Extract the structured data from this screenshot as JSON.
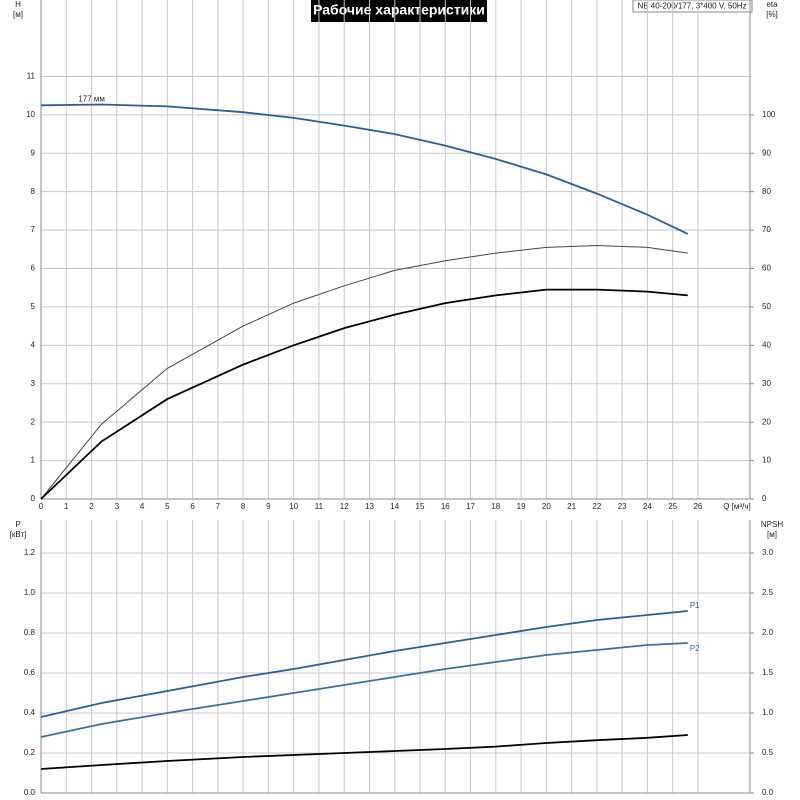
{
  "chart_data": [
    {
      "type": "line",
      "title": "Рабочие характеристики",
      "subtitle": "NB 40-200/177, 3*400 V, 50Hz",
      "x_label": "Q [м³/ч]",
      "y_label": "H",
      "y_unit": "[м]",
      "y2_label": "eta",
      "y2_unit": "[%]",
      "x": [
        0,
        2.4,
        5,
        8,
        10,
        12,
        14,
        16,
        18,
        20,
        22,
        24,
        25.6
      ],
      "series": [
        {
          "name": "177 мм",
          "color": "#2a5f95",
          "values": [
            10.25,
            10.27,
            10.22,
            10.07,
            9.92,
            9.72,
            9.5,
            9.2,
            8.85,
            8.45,
            7.95,
            7.4,
            6.9
          ]
        },
        {
          "color": "#444444",
          "axis": "y2",
          "values": [
            0,
            19.5,
            34,
            45,
            51,
            55.5,
            59.5,
            62,
            64,
            65.5,
            66,
            65.5,
            64
          ]
        },
        {
          "color": "#000000",
          "axis": "y2",
          "values": [
            0,
            15,
            26,
            35,
            40,
            44.5,
            48,
            51,
            53,
            54.5,
            54.5,
            54,
            53
          ]
        }
      ],
      "xlim": [
        0,
        28.06
      ],
      "xticks": [
        0,
        1,
        2,
        3,
        4,
        5,
        6,
        7,
        8,
        9,
        10,
        11,
        12,
        13,
        14,
        15,
        16,
        17,
        18,
        19,
        20,
        21,
        22,
        23,
        24,
        25,
        26
      ],
      "ylim": [
        0,
        12.99
      ],
      "yticks": [
        0,
        1,
        2,
        3,
        4,
        5,
        6,
        7,
        8,
        9,
        10,
        11
      ],
      "y2lim": [
        0,
        129.9
      ],
      "y2ticks": [
        0,
        10,
        20,
        30,
        40,
        50,
        60,
        70,
        80,
        90,
        100
      ],
      "grid": true
    },
    {
      "type": "line",
      "y_label": "P",
      "y_unit": "[кВт]",
      "y2_label": "NPSH",
      "y2_unit": "[м]",
      "x": [
        0,
        2.4,
        5,
        8,
        10,
        12,
        14,
        16,
        18,
        20,
        22,
        24,
        25.6
      ],
      "series": [
        {
          "name": "P1",
          "color": "#2a5f95",
          "values": [
            0.38,
            0.45,
            0.51,
            0.58,
            0.62,
            0.665,
            0.71,
            0.75,
            0.79,
            0.83,
            0.865,
            0.89,
            0.91
          ]
        },
        {
          "name": "P2",
          "color": "#3c6f9f",
          "values": [
            0.28,
            0.345,
            0.4,
            0.46,
            0.5,
            0.54,
            0.58,
            0.62,
            0.655,
            0.69,
            0.715,
            0.74,
            0.75
          ]
        },
        {
          "color": "#000000",
          "axis": "y2",
          "values": [
            0.3,
            0.35,
            0.4,
            0.45,
            0.475,
            0.5,
            0.525,
            0.55,
            0.58,
            0.625,
            0.66,
            0.69,
            0.725
          ]
        }
      ],
      "xlim": [
        0,
        28.06
      ],
      "ylim": [
        0,
        1.365
      ],
      "yticks": [
        {
          "value": 0,
          "label": "0.0"
        },
        0.2,
        0.4,
        0.6,
        0.8,
        {
          "value": 1,
          "label": "1.0"
        },
        1.2
      ],
      "y2lim": [
        0,
        3.4125
      ],
      "y2ticks": [
        {
          "value": 0,
          "label": "0.0"
        },
        0.5,
        {
          "value": 1,
          "label": "1.0"
        },
        1.5,
        {
          "value": 2,
          "label": "2.0"
        },
        2.5,
        {
          "value": 3,
          "label": "3.0"
        }
      ],
      "grid": true
    }
  ]
}
